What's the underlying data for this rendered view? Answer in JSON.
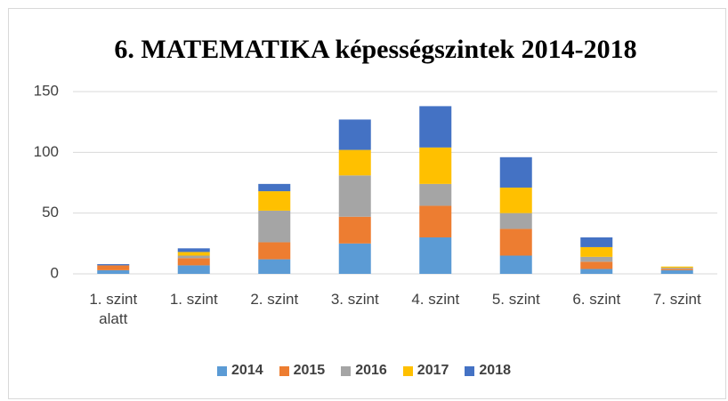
{
  "chart_data": {
    "type": "stacked_bar",
    "title": "6. MATEMATIKA képességszintek 2014-2018",
    "categories": [
      "1. szint alatt",
      "1. szint",
      "2. szint",
      "3. szint",
      "4. szint",
      "5. szint",
      "6. szint",
      "7. szint"
    ],
    "series": [
      {
        "name": "2014",
        "color": "#5b9bd5",
        "values": [
          3,
          7,
          12,
          25,
          30,
          15,
          4,
          3
        ]
      },
      {
        "name": "2015",
        "color": "#ed7d31",
        "values": [
          4,
          6,
          14,
          22,
          26,
          22,
          6,
          1
        ]
      },
      {
        "name": "2016",
        "color": "#a5a5a5",
        "values": [
          0,
          2,
          26,
          34,
          18,
          13,
          4,
          1
        ]
      },
      {
        "name": "2017",
        "color": "#ffc000",
        "values": [
          0,
          3,
          16,
          21,
          30,
          21,
          8,
          1
        ]
      },
      {
        "name": "2018",
        "color": "#4472c4",
        "values": [
          1,
          3,
          6,
          25,
          34,
          25,
          8,
          0
        ]
      }
    ],
    "ylim": [
      0,
      150
    ],
    "yticks": [
      0,
      50,
      100,
      150
    ],
    "grid": true,
    "legend": "bottom"
  }
}
